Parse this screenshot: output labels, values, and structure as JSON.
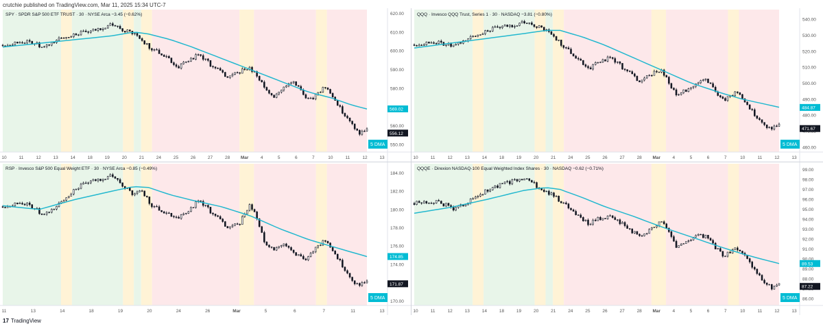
{
  "header": {
    "published": "crutchie published on TradingView.com, Mar 11, 2025 15:34 UTC-7"
  },
  "footer": {
    "logo": "17",
    "brand": "TradingView"
  },
  "colors": {
    "ma": "#22b8cf",
    "bg_green": "#e8f5e9",
    "bg_red": "#fde8ea",
    "bg_yellow": "#fff3d6",
    "candle": "#131722",
    "last_price_bg": "#131722",
    "ma_label_bg": "#00bcd4"
  },
  "chart_data": [
    {
      "type": "candlestick",
      "title": "SPY · SPDR S&P 500 ETF TRUST · 30 · NYSE Arca  −3.45 (−0.62%)",
      "indicator_label": "5 DMA",
      "y_ticks": [
        "620.00",
        "610.00",
        "600.00",
        "590.00",
        "580.00",
        "570.00",
        "560.00",
        "550.00"
      ],
      "x_ticks": [
        "10",
        "11",
        "12",
        "13",
        "14",
        "18",
        "19",
        "20",
        "21",
        "24",
        "25",
        "26",
        "27",
        "28",
        "Mar",
        "4",
        "5",
        "6",
        "7",
        "10",
        "11",
        "12",
        "13"
      ],
      "ylim": [
        546,
        622
      ],
      "last_price": "556.12",
      "ma_value": "569.02",
      "price_path": [
        [
          0,
          603
        ],
        [
          0.05,
          605
        ],
        [
          0.09,
          604
        ],
        [
          0.11,
          601
        ],
        [
          0.15,
          606
        ],
        [
          0.2,
          609
        ],
        [
          0.24,
          610
        ],
        [
          0.27,
          612
        ],
        [
          0.3,
          614
        ],
        [
          0.33,
          611
        ],
        [
          0.36,
          609
        ],
        [
          0.38,
          606
        ],
        [
          0.41,
          601
        ],
        [
          0.45,
          597
        ],
        [
          0.48,
          591
        ],
        [
          0.5,
          594
        ],
        [
          0.54,
          598
        ],
        [
          0.58,
          591
        ],
        [
          0.62,
          586
        ],
        [
          0.65,
          589
        ],
        [
          0.68,
          591
        ],
        [
          0.7,
          586
        ],
        [
          0.72,
          580
        ],
        [
          0.74,
          575
        ],
        [
          0.77,
          581
        ],
        [
          0.8,
          583
        ],
        [
          0.83,
          576
        ],
        [
          0.85,
          574
        ],
        [
          0.88,
          580
        ],
        [
          0.9,
          578
        ],
        [
          0.93,
          568
        ],
        [
          0.96,
          561
        ],
        [
          0.98,
          556
        ],
        [
          1,
          558
        ]
      ],
      "ma_path": [
        [
          0,
          602
        ],
        [
          0.1,
          604
        ],
        [
          0.2,
          606
        ],
        [
          0.3,
          608
        ],
        [
          0.36,
          610
        ],
        [
          0.4,
          609
        ],
        [
          0.46,
          606
        ],
        [
          0.52,
          602
        ],
        [
          0.6,
          596
        ],
        [
          0.68,
          590
        ],
        [
          0.76,
          584
        ],
        [
          0.84,
          578
        ],
        [
          0.9,
          575
        ],
        [
          0.96,
          571
        ],
        [
          1,
          569
        ]
      ]
    },
    {
      "type": "candlestick",
      "title": "QQQ · Invesco QQQ Trust, Series 1 · 30 · NASDAQ  −3.81 (−0.80%)",
      "indicator_label": "5 DMA",
      "y_ticks": [
        "540.00",
        "530.00",
        "520.00",
        "510.00",
        "500.00",
        "490.00",
        "480.00",
        "470.00",
        "460.00"
      ],
      "x_ticks": [
        "10",
        "11",
        "12",
        "13",
        "14",
        "18",
        "19",
        "20",
        "21",
        "24",
        "25",
        "26",
        "27",
        "28",
        "Mar",
        "4",
        "5",
        "6",
        "7",
        "10",
        "11",
        "12",
        "13"
      ],
      "ylim": [
        457,
        546
      ],
      "last_price": "471.67",
      "ma_value": "484.87",
      "price_path": [
        [
          0,
          524
        ],
        [
          0.05,
          526
        ],
        [
          0.09,
          524
        ],
        [
          0.11,
          523
        ],
        [
          0.15,
          528
        ],
        [
          0.2,
          533
        ],
        [
          0.24,
          535
        ],
        [
          0.27,
          536
        ],
        [
          0.3,
          538
        ],
        [
          0.33,
          536
        ],
        [
          0.36,
          533
        ],
        [
          0.38,
          530
        ],
        [
          0.41,
          523
        ],
        [
          0.45,
          515
        ],
        [
          0.48,
          509
        ],
        [
          0.5,
          513
        ],
        [
          0.54,
          516
        ],
        [
          0.58,
          508
        ],
        [
          0.62,
          501
        ],
        [
          0.65,
          506
        ],
        [
          0.68,
          508
        ],
        [
          0.7,
          499
        ],
        [
          0.72,
          492
        ],
        [
          0.74,
          495
        ],
        [
          0.77,
          500
        ],
        [
          0.8,
          502
        ],
        [
          0.83,
          494
        ],
        [
          0.85,
          489
        ],
        [
          0.88,
          494
        ],
        [
          0.9,
          491
        ],
        [
          0.93,
          481
        ],
        [
          0.96,
          474
        ],
        [
          0.98,
          472
        ],
        [
          1,
          474
        ]
      ],
      "ma_path": [
        [
          0,
          522
        ],
        [
          0.1,
          525
        ],
        [
          0.2,
          528
        ],
        [
          0.3,
          531
        ],
        [
          0.36,
          533
        ],
        [
          0.4,
          533
        ],
        [
          0.46,
          529
        ],
        [
          0.52,
          524
        ],
        [
          0.6,
          516
        ],
        [
          0.68,
          508
        ],
        [
          0.76,
          500
        ],
        [
          0.84,
          494
        ],
        [
          0.9,
          490
        ],
        [
          0.96,
          487
        ],
        [
          1,
          485
        ]
      ]
    },
    {
      "type": "candlestick",
      "title": "RSP · Invesco S&P 500 Equal Weight ETF · 30 · NYSE Arca  −0.85 (−0.49%)",
      "indicator_label": "5 DMA",
      "y_ticks": [
        "184.00",
        "182.00",
        "180.00",
        "178.00",
        "176.00",
        "174.00",
        "172.00",
        "170.00"
      ],
      "x_ticks": [
        "11",
        "13",
        "14",
        "18",
        "19",
        "20",
        "24",
        "26",
        "Mar",
        "5",
        "6",
        "7",
        "11",
        "13"
      ],
      "ylim": [
        169.5,
        185
      ],
      "last_price": "171.87",
      "ma_value": "174.85",
      "price_path": [
        [
          0,
          180.3
        ],
        [
          0.05,
          180.8
        ],
        [
          0.09,
          180.1
        ],
        [
          0.11,
          179.2
        ],
        [
          0.15,
          180.4
        ],
        [
          0.2,
          182.3
        ],
        [
          0.24,
          183.0
        ],
        [
          0.27,
          183.3
        ],
        [
          0.3,
          183.7
        ],
        [
          0.33,
          182.6
        ],
        [
          0.36,
          181.5
        ],
        [
          0.38,
          182.2
        ],
        [
          0.41,
          180.4
        ],
        [
          0.45,
          179.6
        ],
        [
          0.48,
          179.1
        ],
        [
          0.5,
          179.5
        ],
        [
          0.54,
          181.0
        ],
        [
          0.58,
          179.4
        ],
        [
          0.62,
          178.0
        ],
        [
          0.65,
          178.5
        ],
        [
          0.68,
          180.6
        ],
        [
          0.7,
          178.8
        ],
        [
          0.72,
          176.2
        ],
        [
          0.74,
          175.6
        ],
        [
          0.77,
          176.4
        ],
        [
          0.8,
          175.1
        ],
        [
          0.83,
          174.6
        ],
        [
          0.85,
          175.3
        ],
        [
          0.88,
          176.5
        ],
        [
          0.9,
          176.0
        ],
        [
          0.93,
          174.0
        ],
        [
          0.96,
          172.2
        ],
        [
          0.98,
          171.8
        ],
        [
          1,
          172.1
        ]
      ],
      "ma_path": [
        [
          0,
          180.4
        ],
        [
          0.1,
          180.0
        ],
        [
          0.2,
          181.1
        ],
        [
          0.3,
          182.0
        ],
        [
          0.36,
          182.5
        ],
        [
          0.4,
          182.4
        ],
        [
          0.46,
          181.6
        ],
        [
          0.52,
          181.0
        ],
        [
          0.6,
          180.3
        ],
        [
          0.68,
          179.3
        ],
        [
          0.76,
          177.9
        ],
        [
          0.84,
          176.7
        ],
        [
          0.9,
          176.0
        ],
        [
          0.96,
          175.3
        ],
        [
          1,
          174.85
        ]
      ]
    },
    {
      "type": "candlestick",
      "title": "QQQE · Direxion NASDAQ-100 Equal Weighted Index Shares · 30 · NASDAQ  −0.62 (−0.71%)",
      "indicator_label": "5 DMA",
      "y_ticks": [
        "99.00",
        "98.00",
        "97.00",
        "96.00",
        "95.00",
        "94.00",
        "93.00",
        "92.00",
        "91.00",
        "90.00",
        "89.00",
        "88.00",
        "87.00",
        "86.00"
      ],
      "x_ticks": [
        "10",
        "11",
        "12",
        "13",
        "14",
        "18",
        "19",
        "20",
        "21",
        "24",
        "25",
        "26",
        "27",
        "28",
        "Mar",
        "4",
        "5",
        "6",
        "7",
        "10",
        "11",
        "12",
        "13"
      ],
      "ylim": [
        85.3,
        99.6
      ],
      "last_price": "87.22",
      "ma_value": "89.53",
      "price_path": [
        [
          0,
          95.6
        ],
        [
          0.05,
          95.8
        ],
        [
          0.09,
          95.4
        ],
        [
          0.11,
          95.0
        ],
        [
          0.15,
          95.8
        ],
        [
          0.2,
          96.9
        ],
        [
          0.24,
          97.5
        ],
        [
          0.27,
          97.8
        ],
        [
          0.3,
          98.2
        ],
        [
          0.33,
          97.5
        ],
        [
          0.36,
          96.7
        ],
        [
          0.38,
          96.4
        ],
        [
          0.41,
          95.6
        ],
        [
          0.45,
          94.3
        ],
        [
          0.48,
          93.5
        ],
        [
          0.5,
          94.0
        ],
        [
          0.54,
          94.2
        ],
        [
          0.58,
          93.3
        ],
        [
          0.62,
          92.1
        ],
        [
          0.65,
          93.1
        ],
        [
          0.68,
          93.9
        ],
        [
          0.7,
          92.6
        ],
        [
          0.72,
          91.1
        ],
        [
          0.74,
          91.5
        ],
        [
          0.77,
          92.4
        ],
        [
          0.8,
          92.2
        ],
        [
          0.83,
          91.0
        ],
        [
          0.85,
          90.3
        ],
        [
          0.88,
          91.2
        ],
        [
          0.9,
          90.5
        ],
        [
          0.93,
          89.0
        ],
        [
          0.96,
          87.6
        ],
        [
          0.98,
          87.1
        ],
        [
          1,
          87.4
        ]
      ],
      "ma_path": [
        [
          0,
          94.6
        ],
        [
          0.1,
          95.2
        ],
        [
          0.2,
          96.0
        ],
        [
          0.3,
          96.9
        ],
        [
          0.36,
          97.2
        ],
        [
          0.4,
          97.0
        ],
        [
          0.46,
          96.2
        ],
        [
          0.52,
          95.3
        ],
        [
          0.6,
          94.3
        ],
        [
          0.68,
          93.2
        ],
        [
          0.76,
          92.2
        ],
        [
          0.84,
          91.2
        ],
        [
          0.9,
          90.5
        ],
        [
          0.96,
          89.9
        ],
        [
          1,
          89.53
        ]
      ]
    }
  ]
}
